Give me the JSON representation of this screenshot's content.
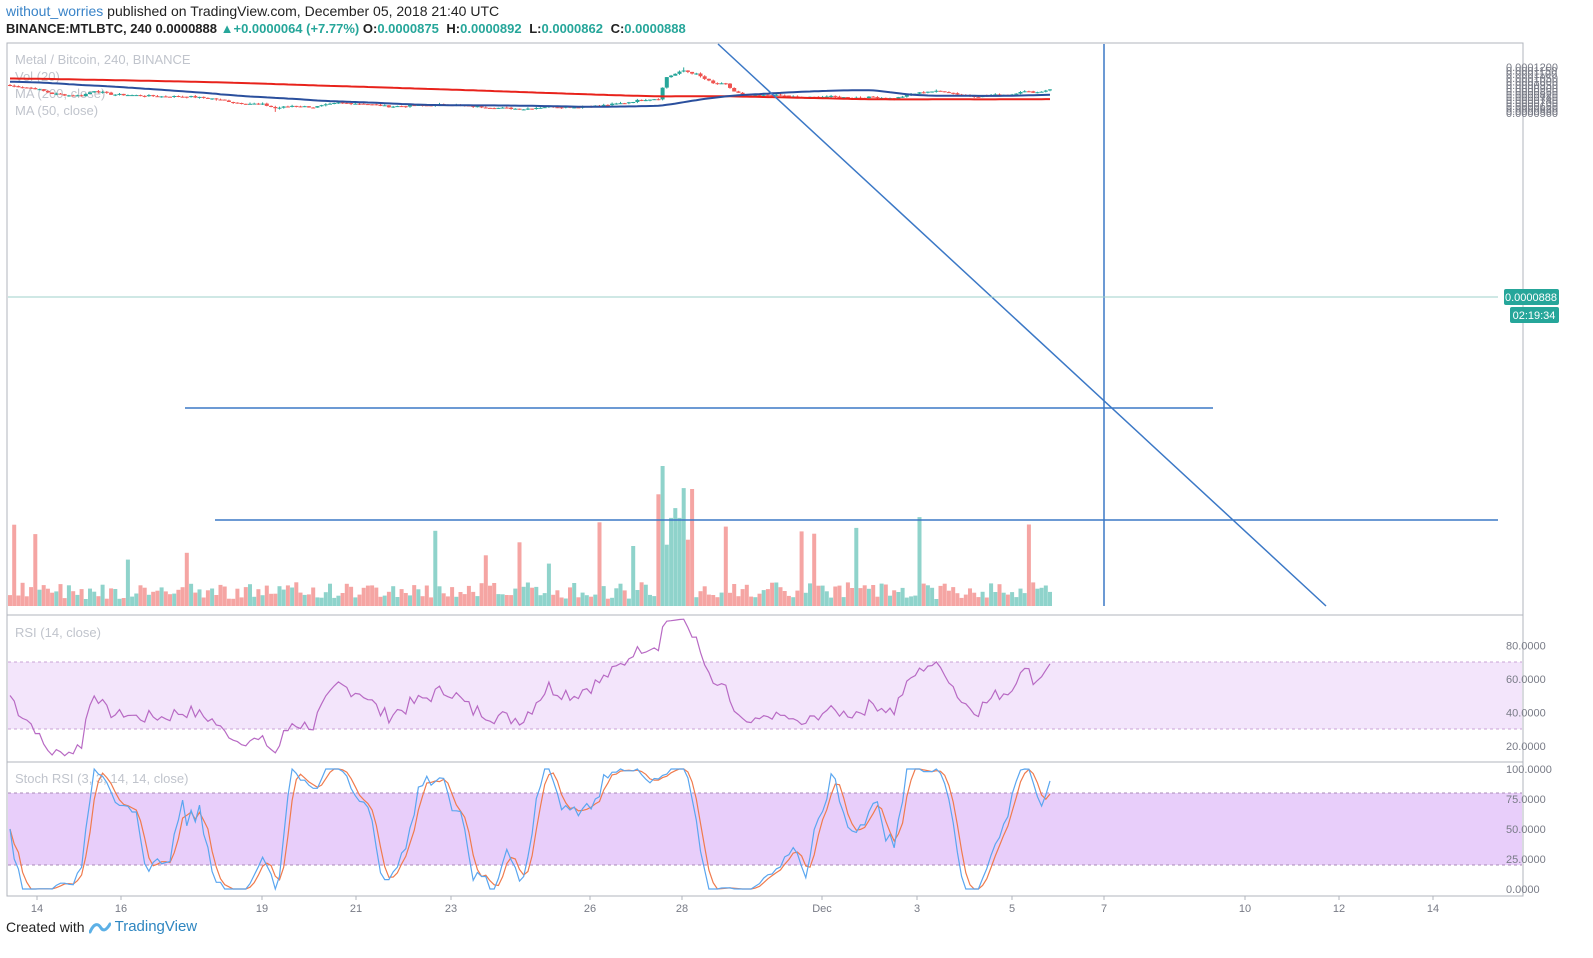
{
  "header": {
    "author": "without_worries",
    "published_text": "published on TradingView.com, December 05, 2018 21:40 UTC",
    "symbol_line": "BINANCE:MTLBTC, 240",
    "last_price": "0.0000888",
    "change": "+0.0000064 (+7.77%)",
    "open_label": "O:",
    "open": "0.0000875",
    "high_label": "H:",
    "high": "0.0000892",
    "low_label": "L:",
    "low": "0.0000862",
    "close_label": "C:",
    "close": "0.0000888"
  },
  "legend": {
    "title": "Metal / Bitcoin, 240, BINANCE",
    "vol": "Vol (20)",
    "ma200": "MA (200, close)",
    "ma50": "MA (50, close)",
    "rsi": "RSI (14, close)",
    "stoch": "Stoch RSI (3, 3, 14, 14, close)"
  },
  "price_badge": {
    "value": "0.0000888",
    "timer": "02:19:34"
  },
  "colors": {
    "up": "#26a69a",
    "down": "#ef5350",
    "ma200": "#e8221b",
    "ma50": "#2a4f9d",
    "trendline": "#3b78c6",
    "rsi_line": "#b86ac4",
    "rsi_band": "#f3e5fb",
    "stoch_band": "#e8cefa",
    "stoch_k": "#5aa6f0",
    "stoch_d": "#f07b4d",
    "badge": "#26a69a"
  },
  "chart_data": {
    "type": "candlestick",
    "title": "Metal / Bitcoin, 240, BINANCE",
    "price_axis_ticks": [
      "0.0001200",
      "0.0001150",
      "0.0001100",
      "0.0001050",
      "0.0001000",
      "0.0000950",
      "0.0000900",
      "0.0000860",
      "0.0000820",
      "0.0000780",
      "0.0000740",
      "0.0000700",
      "0.0000660",
      "0.0000620",
      "0.0000590",
      "0.0000560"
    ],
    "x_tick_labels": [
      "14",
      "16",
      "19",
      "21",
      "23",
      "26",
      "28",
      "Dec",
      "3",
      "5",
      "7",
      "10",
      "12",
      "14"
    ],
    "key_levels": {
      "resistance_support": 7.52e-05,
      "support": 6.26e-05
    },
    "descending_trendline": {
      "from_date": "Nov 28",
      "to_date": "Dec 12"
    },
    "spike": {
      "date": "Nov 29",
      "high": 0.0001195,
      "low_before": 7.45e-05
    },
    "last": {
      "open": 8.75e-05,
      "high": 8.92e-05,
      "low": 8.62e-05,
      "close": 8.88e-05
    },
    "rsi": {
      "axis_ticks": [
        "80.0000",
        "60.0000",
        "40.0000",
        "20.0000"
      ],
      "band": [
        30,
        70
      ],
      "peak": 89,
      "last": 59
    },
    "stoch_rsi": {
      "axis_ticks": [
        "100.0000",
        "75.0000",
        "50.0000",
        "25.0000",
        "0.0000"
      ],
      "band": [
        20,
        80
      ],
      "last_k": 80,
      "last_d": 70
    }
  },
  "footer": {
    "created_with": "Created with",
    "brand": "TradingView"
  }
}
